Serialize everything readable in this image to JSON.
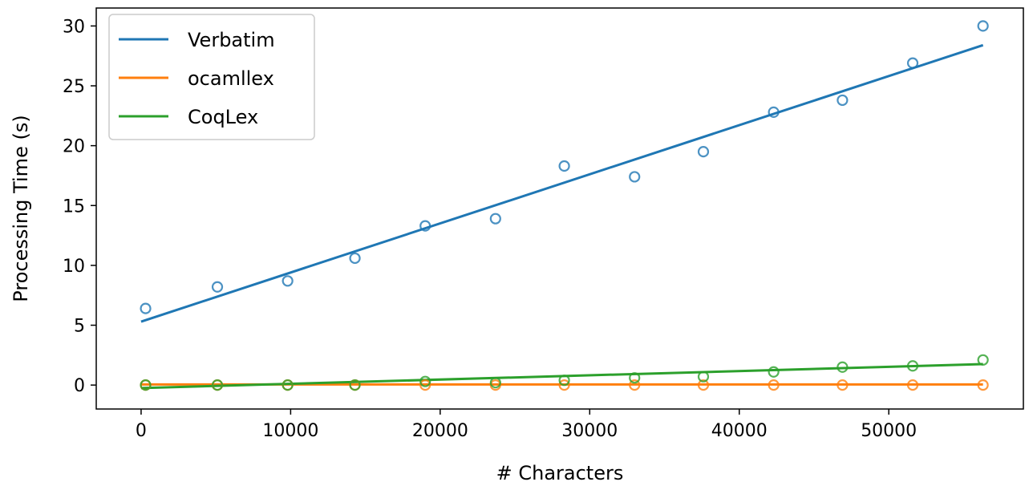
{
  "chart_data": {
    "type": "scatter",
    "xlabel": "# Characters",
    "ylabel": "Processing Time (s)",
    "xlim": [
      -3000,
      59000
    ],
    "ylim": [
      -2,
      31.5
    ],
    "xticks": [
      0,
      10000,
      20000,
      30000,
      40000,
      50000
    ],
    "yticks": [
      0,
      5,
      10,
      15,
      20,
      25,
      30
    ],
    "grid": false,
    "legend_position": "top-left",
    "series": [
      {
        "name": "Verbatim",
        "color": "#1f77b4",
        "x": [
          300,
          5100,
          9800,
          14300,
          19000,
          23700,
          28300,
          33000,
          37600,
          42300,
          46900,
          51600,
          56300
        ],
        "y": [
          6.4,
          8.2,
          8.7,
          10.6,
          13.3,
          13.9,
          18.3,
          17.4,
          19.5,
          22.8,
          23.8,
          26.9,
          30.0
        ],
        "fit": {
          "x": [
            0,
            56300
          ],
          "y": [
            5.3,
            28.4
          ]
        }
      },
      {
        "name": "ocamllex",
        "color": "#ff7f0e",
        "x": [
          300,
          5100,
          9800,
          14300,
          19000,
          23700,
          28300,
          33000,
          37600,
          42300,
          46900,
          51600,
          56300
        ],
        "y": [
          0.0,
          0.0,
          0.0,
          0.0,
          0.0,
          0.0,
          0.0,
          0.0,
          0.0,
          0.0,
          0.0,
          0.0,
          0.0
        ],
        "fit": {
          "x": [
            0,
            56300
          ],
          "y": [
            0.05,
            0.05
          ]
        }
      },
      {
        "name": "CoqLex",
        "color": "#2ca02c",
        "x": [
          300,
          5100,
          9800,
          14300,
          19000,
          23700,
          28300,
          33000,
          37600,
          42300,
          46900,
          51600,
          56300
        ],
        "y": [
          0.0,
          0.0,
          0.0,
          0.0,
          0.3,
          0.2,
          0.4,
          0.6,
          0.7,
          1.1,
          1.5,
          1.6,
          2.1
        ],
        "fit": {
          "x": [
            0,
            56300
          ],
          "y": [
            -0.25,
            1.75
          ]
        }
      }
    ]
  }
}
